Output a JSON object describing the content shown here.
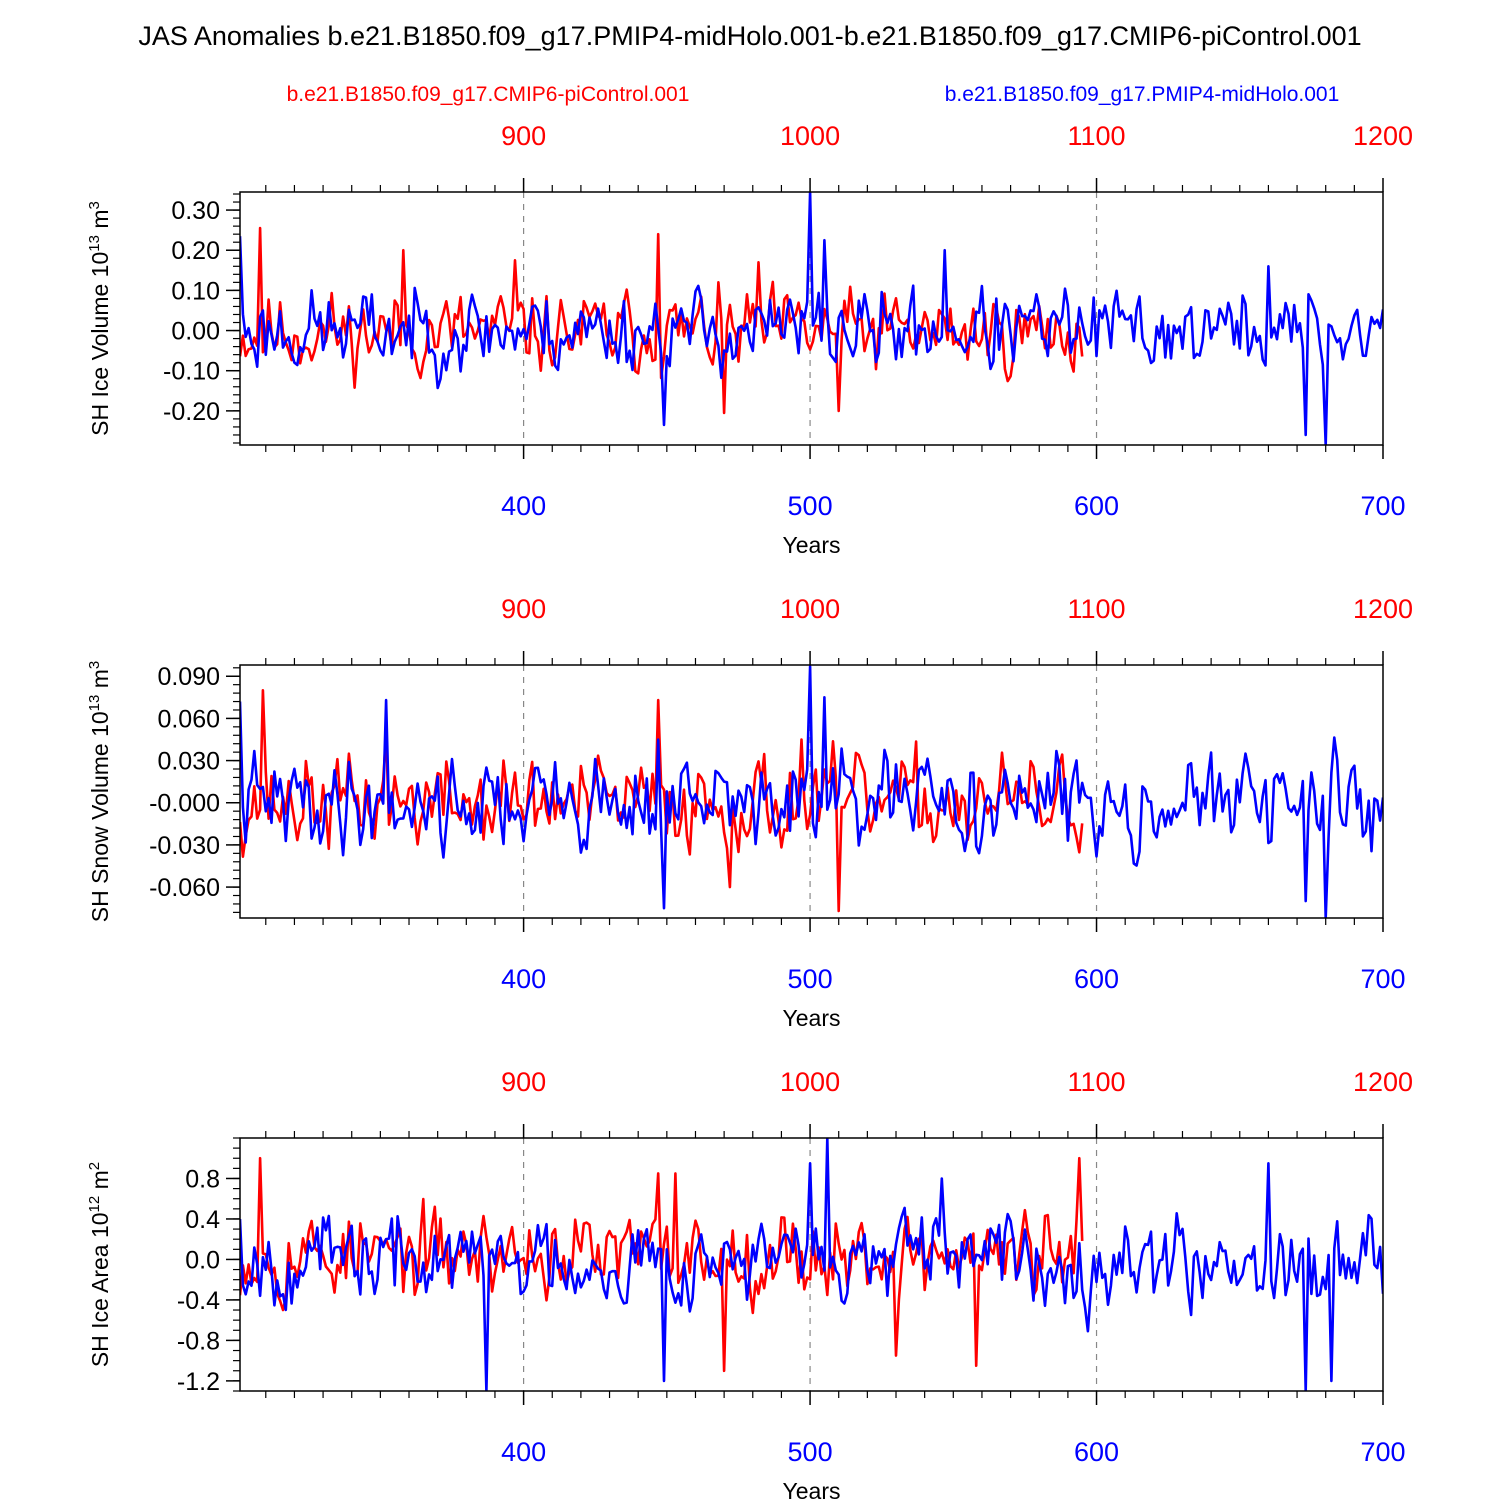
{
  "title": "JAS Anomalies b.e21.B1850.f09_g17.PMIP4-midHolo.001-b.e21.B1850.f09_g17.CMIP6-piControl.001",
  "legend": {
    "red_label": "b.e21.B1850.f09_g17.CMIP6-piControl.001",
    "blue_label": "b.e21.B1850.f09_g17.PMIP4-midHolo.001"
  },
  "colors": {
    "red": "#ff0000",
    "blue": "#0000ff",
    "axis": "#000000",
    "grid": "#888888"
  },
  "chart_data": [
    {
      "type": "line",
      "ylabel": "SH Ice Volume 10",
      "ylabel_exp": "13",
      "ylabel_unit": " m",
      "ylabel_unit_exp": "3",
      "xlabel": "Years",
      "ylim": [
        -0.285,
        0.345
      ],
      "yticks": [
        -0.2,
        -0.1,
        0.0,
        0.1,
        0.2,
        0.3
      ],
      "ytick_labels": [
        "-0.20",
        "-0.10",
        "0.00",
        "0.10",
        "0.20",
        "0.30"
      ],
      "yminor_step": 0.02,
      "xlim": [
        301,
        700
      ],
      "xticks": [
        400,
        500,
        600,
        700
      ],
      "top_xticks": [
        900,
        1000,
        1100,
        1200
      ],
      "red_x_range": [
        801,
        1095
      ],
      "series": [
        {
          "name": "b.e21.B1850.f09_g17.CMIP6-piControl.001",
          "color": "red",
          "x_start": 301,
          "x_end": 595,
          "mean": -0.005,
          "amplitude": 0.085,
          "seed": 11,
          "extremes": [
            [
              308,
              0.255
            ],
            [
              447,
              0.24
            ],
            [
              470,
              -0.205
            ],
            [
              510,
              -0.2
            ],
            [
              482,
              0.17
            ],
            [
              397,
              0.175
            ],
            [
              358,
              0.2
            ]
          ]
        },
        {
          "name": "b.e21.B1850.f09_g17.PMIP4-midHolo.001",
          "color": "blue",
          "x_start": 301,
          "x_end": 700,
          "mean": 0.0,
          "amplitude": 0.085,
          "seed": 23,
          "extremes": [
            [
              500,
              0.345
            ],
            [
              680,
              -0.285
            ],
            [
              673,
              -0.26
            ],
            [
              449,
              -0.235
            ],
            [
              505,
              0.225
            ],
            [
              547,
              0.2
            ],
            [
              660,
              0.16
            ],
            [
              301,
              0.235
            ]
          ]
        }
      ]
    },
    {
      "type": "line",
      "ylabel": "SH Snow Volume 10",
      "ylabel_exp": "13",
      "ylabel_unit": " m",
      "ylabel_unit_exp": "3",
      "xlabel": "Years",
      "ylim": [
        -0.082,
        0.098
      ],
      "yticks": [
        -0.06,
        -0.03,
        0.0,
        0.03,
        0.06,
        0.09
      ],
      "ytick_labels": [
        "-0.060",
        "-0.030",
        "-0.000",
        "0.030",
        "0.060",
        "0.090"
      ],
      "yminor_step": 0.006,
      "xlim": [
        301,
        700
      ],
      "xticks": [
        400,
        500,
        600,
        700
      ],
      "top_xticks": [
        900,
        1000,
        1100,
        1200
      ],
      "red_x_range": [
        801,
        1095
      ],
      "series": [
        {
          "name": "b.e21.B1850.f09_g17.CMIP6-piControl.001",
          "color": "red",
          "x_start": 301,
          "x_end": 595,
          "mean": 0.0,
          "amplitude": 0.027,
          "seed": 37,
          "extremes": [
            [
              309,
              0.08
            ],
            [
              447,
              0.073
            ],
            [
              510,
              -0.077
            ],
            [
              472,
              -0.06
            ],
            [
              352,
              0.05
            ],
            [
              497,
              0.045
            ]
          ]
        },
        {
          "name": "b.e21.B1850.f09_g17.PMIP4-midHolo.001",
          "color": "blue",
          "x_start": 301,
          "x_end": 700,
          "mean": 0.0,
          "amplitude": 0.027,
          "seed": 41,
          "extremes": [
            [
              500,
              0.097
            ],
            [
              680,
              -0.082
            ],
            [
              449,
              -0.075
            ],
            [
              673,
              -0.07
            ],
            [
              352,
              0.073
            ],
            [
              301,
              0.072
            ],
            [
              505,
              0.075
            ],
            [
              447,
              0.045
            ]
          ]
        }
      ]
    },
    {
      "type": "line",
      "ylabel": "SH Ice Area 10",
      "ylabel_exp": "12",
      "ylabel_unit": " m",
      "ylabel_unit_exp": "2",
      "xlabel": "Years",
      "ylim": [
        -1.3,
        1.2
      ],
      "yticks": [
        -1.2,
        -0.8,
        -0.4,
        0.0,
        0.4,
        0.8
      ],
      "ytick_labels": [
        "-1.2",
        "-0.8",
        "-0.4",
        "0.0",
        "0.4",
        "0.8"
      ],
      "yminor_step": 0.1,
      "xlim": [
        301,
        700
      ],
      "xticks": [
        400,
        500,
        600,
        700
      ],
      "top_xticks": [
        900,
        1000,
        1100,
        1200
      ],
      "red_x_range": [
        801,
        1095
      ],
      "series": [
        {
          "name": "b.e21.B1850.f09_g17.CMIP6-piControl.001",
          "color": "red",
          "x_start": 301,
          "x_end": 595,
          "mean": 0.05,
          "amplitude": 0.35,
          "seed": 53,
          "extremes": [
            [
              308,
              1.0
            ],
            [
              594,
              1.0
            ],
            [
              470,
              -1.1
            ],
            [
              558,
              -1.05
            ],
            [
              447,
              0.85
            ],
            [
              453,
              0.85
            ],
            [
              530,
              -0.95
            ],
            [
              316,
              -0.5
            ]
          ]
        },
        {
          "name": "b.e21.B1850.f09_g17.PMIP4-midHolo.001",
          "color": "blue",
          "x_start": 301,
          "x_end": 700,
          "mean": 0.0,
          "amplitude": 0.35,
          "seed": 67,
          "extremes": [
            [
              506,
              1.2
            ],
            [
              387,
              -1.3
            ],
            [
              673,
              -1.3
            ],
            [
              449,
              -1.2
            ],
            [
              660,
              0.95
            ],
            [
              682,
              -1.2
            ],
            [
              500,
              0.95
            ],
            [
              546,
              0.8
            ],
            [
              301,
              0.4
            ]
          ]
        }
      ]
    }
  ]
}
